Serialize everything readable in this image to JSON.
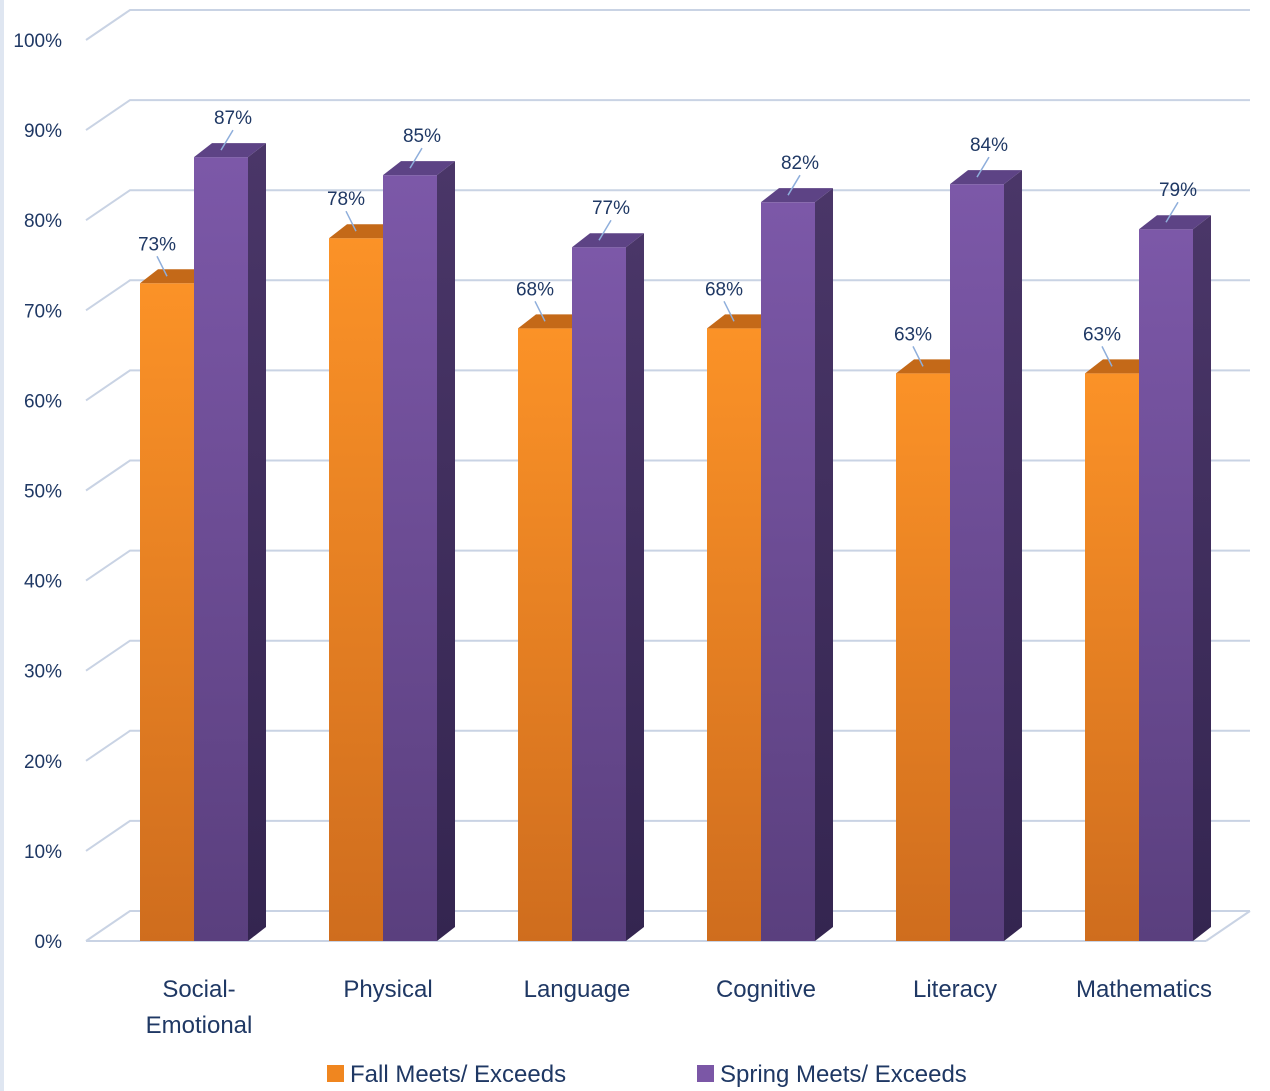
{
  "chart_data": {
    "type": "bar",
    "categories": [
      [
        "Social-",
        "Emotional"
      ],
      [
        "Physical"
      ],
      [
        "Language"
      ],
      [
        "Cognitive"
      ],
      [
        "Literacy"
      ],
      [
        "Mathematics"
      ]
    ],
    "series": [
      {
        "name": "Fall Meets/ Exceeds",
        "values": [
          73,
          78,
          68,
          68,
          63,
          63
        ],
        "labels": [
          "73%",
          "78%",
          "68%",
          "68%",
          "63%",
          "63%"
        ],
        "color": "#f0861f"
      },
      {
        "name": "Spring Meets/ Exceeds",
        "values": [
          87,
          85,
          77,
          82,
          84,
          79
        ],
        "labels": [
          "87%",
          "85%",
          "77%",
          "82%",
          "84%",
          "79%"
        ],
        "color": "#7b57a6"
      }
    ],
    "y_ticks": [
      "0%",
      "10%",
      "20%",
      "30%",
      "40%",
      "50%",
      "60%",
      "70%",
      "80%",
      "90%",
      "100%"
    ],
    "ylim": [
      0,
      100
    ],
    "grid": true,
    "legend_position": "bottom",
    "three_d": true
  }
}
